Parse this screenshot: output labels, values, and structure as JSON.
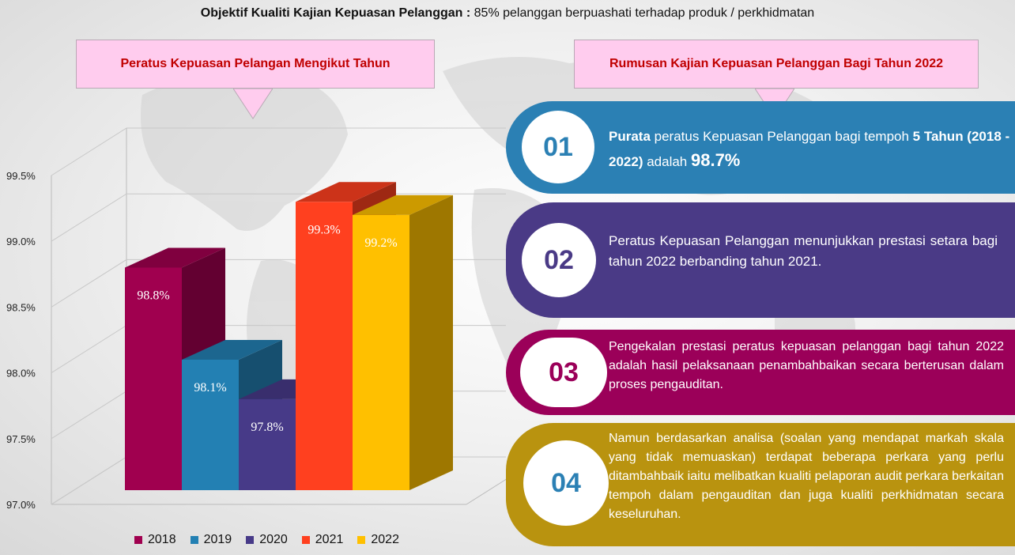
{
  "headline": {
    "bold": "Objektif Kualiti Kajian Kepuasan Pelanggan :",
    "rest": " 85% pelanggan berpuashati terhadap produk / perkhidmatan"
  },
  "left_header": "Peratus Kepuasan Pelangan Mengikut Tahun",
  "right_header": "Rumusan Kajian Kepuasan Pelanggan Bagi Tahun 2022",
  "colors": {
    "pink_box": "#ffccee",
    "header_text": "#c00000",
    "item1": "#2b80b4",
    "item2": "#4a3a86",
    "item3": "#9b0059",
    "item4": "#b9930f"
  },
  "chart_data": {
    "type": "bar",
    "categories": [
      "2018",
      "2019",
      "2020",
      "2021",
      "2022"
    ],
    "values": [
      98.8,
      98.1,
      97.8,
      99.3,
      99.2
    ],
    "value_labels": [
      "98.8%",
      "98.1%",
      "97.8%",
      "99.3%",
      "99.2%"
    ],
    "colors": [
      "#a0004f",
      "#2380b3",
      "#473a88",
      "#ff401f",
      "#ffc000"
    ],
    "yticks": [
      "97.0%",
      "97.5%",
      "98.0%",
      "98.5%",
      "99.0%",
      "99.5%"
    ],
    "ylim": [
      97.0,
      99.5
    ],
    "grid": true,
    "legend": "bottom",
    "style": "3d"
  },
  "items": [
    {
      "num": "01",
      "b1": "Purata",
      "t1": " peratus Kepuasan Pelanggan bagi tempoh ",
      "b2": "5 Tahun (2018 - 2022)",
      "t2": " adalah ",
      "big": "98.7%"
    },
    {
      "num": "02",
      "text": "Peratus Kepuasan Pelanggan menunjukkan prestasi setara bagi tahun 2022 berbanding tahun 2021."
    },
    {
      "num": "03",
      "text": "Pengekalan prestasi peratus kepuasan pelanggan bagi tahun 2022 adalah hasil pelaksanaan penambahbaikan secara berterusan dalam proses pengauditan."
    },
    {
      "num": "04",
      "text": "Namun berdasarkan analisa (soalan yang mendapat markah skala yang tidak memuaskan) terdapat beberapa perkara yang perlu ditambahbaik iaitu melibatkan kualiti pelaporan audit perkara berkaitan tempoh dalam pengauditan dan juga kualiti perkhidmatan secara keseluruhan."
    }
  ]
}
